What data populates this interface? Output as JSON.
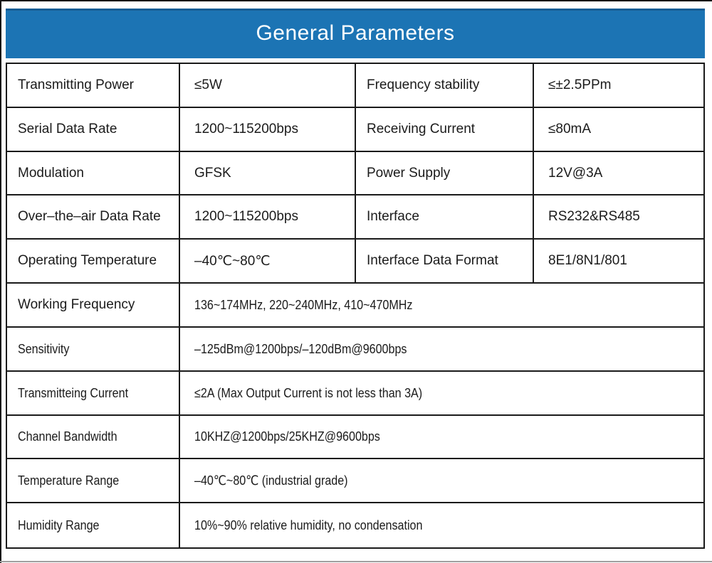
{
  "header": {
    "title": "General Parameters",
    "bg_color": "#1c74b4",
    "text_color": "#ffffff"
  },
  "table": {
    "border_color": "#1a1a1a",
    "paired_rows": [
      {
        "label1": "Transmitting Power",
        "value1": "≤5W",
        "label2": "Frequency stability",
        "value2": "≤±2.5PPm"
      },
      {
        "label1": "Serial Data Rate",
        "value1": "1200~115200bps",
        "label2": "Receiving Current",
        "value2": "≤80mA"
      },
      {
        "label1": "Modulation",
        "value1": "GFSK",
        "label2": "Power Supply",
        "value2": "12V@3A"
      },
      {
        "label1": "Over–the–air Data Rate",
        "value1": "1200~115200bps",
        "label2": "Interface",
        "value2": "RS232&RS485"
      },
      {
        "label1": "Operating Temperature",
        "value1": "–40℃~80℃",
        "label2": "Interface Data Format",
        "value2": "8E1/8N1/801"
      }
    ],
    "full_rows": [
      {
        "label": "Working Frequency",
        "value": "136~174MHz, 220~240MHz, 410~470MHz"
      },
      {
        "label": "Sensitivity",
        "value": "–125dBm@1200bps/–120dBm@9600bps"
      },
      {
        "label": "Transmitteing Current",
        "value": "≤2A (Max Output Current is not less than 3A)"
      },
      {
        "label": "Channel Bandwidth",
        "value": "10KHZ@1200bps/25KHZ@9600bps"
      },
      {
        "label": "Temperature Range",
        "value": "–40℃~80℃ (industrial grade)"
      },
      {
        "label": "Humidity Range",
        "value": "10%~90% relative humidity, no condensation"
      }
    ]
  }
}
